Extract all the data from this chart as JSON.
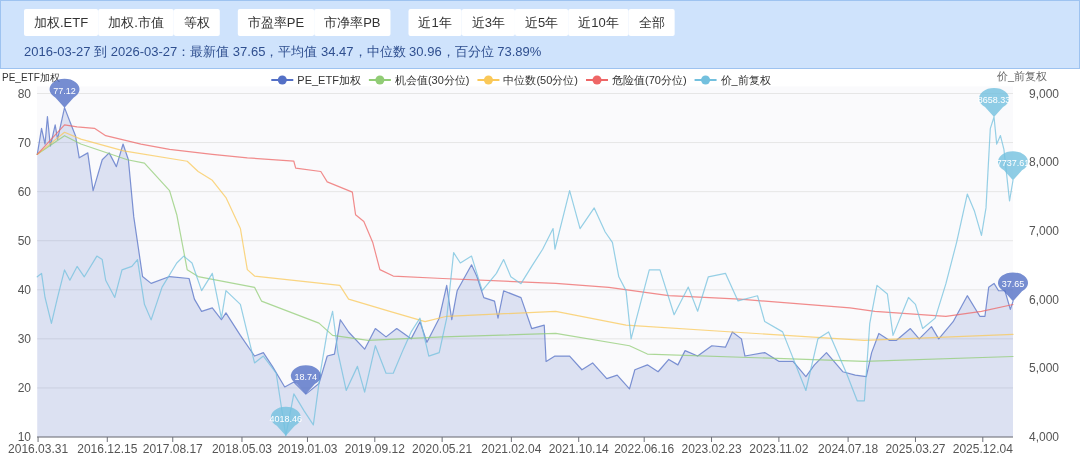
{
  "chart_data": {
    "type": "line",
    "subtitle": "2016-03-27 到 2026-03-27：最新值 37.65，平均值 34.47，中位数 30.96，百分位 73.89%",
    "ylabel": "PE_ETF加权",
    "y2label": "价_前复权",
    "grid": "y",
    "legend": "top",
    "xlim": [
      "2016-03-27",
      "2026-03-27"
    ],
    "xticks": [
      {
        "value": "2016-03-31",
        "label": "2016.03.31"
      },
      {
        "value": "2016-12-15",
        "label": "2016.12.15"
      },
      {
        "value": "2017-08-17",
        "label": "2017.08.17"
      },
      {
        "value": "2018-05-03",
        "label": "2018.05.03"
      },
      {
        "value": "2019-01-03",
        "label": "2019.01.03"
      },
      {
        "value": "2019-09-12",
        "label": "2019.09.12"
      },
      {
        "value": "2020-05-21",
        "label": "2020.05.21"
      },
      {
        "value": "2021-02-04",
        "label": "2021.02.04"
      },
      {
        "value": "2021-10-14",
        "label": "2021.10.14"
      },
      {
        "value": "2022-06-16",
        "label": "2022.06.16"
      },
      {
        "value": "2023-02-23",
        "label": "2023.02.23"
      },
      {
        "value": "2023-11-02",
        "label": "2023.11.02"
      },
      {
        "value": "2024-07-18",
        "label": "2024.07.18"
      },
      {
        "value": "2025-03-27",
        "label": "2025.03.27"
      },
      {
        "value": "2025-12-04",
        "label": "2025.12.04"
      }
    ],
    "ylim": [
      10,
      80
    ],
    "yticks": [
      10,
      20,
      30,
      40,
      50,
      60,
      70,
      80
    ],
    "y2lim": [
      4000,
      9000
    ],
    "y2ticks": [
      {
        "value": 4000,
        "label": "4,000"
      },
      {
        "value": 5000,
        "label": "5,000"
      },
      {
        "value": 6000,
        "label": "6,000"
      },
      {
        "value": 7000,
        "label": "7,000"
      },
      {
        "value": 8000,
        "label": "8,000"
      },
      {
        "value": 9000,
        "label": "9,000"
      }
    ],
    "annotations": [
      "加权.ETF",
      "加权.市值",
      "等权",
      "市盈率PE",
      "市净率PB",
      "近1年",
      "近3年",
      "近5年",
      "近10年",
      "全部"
    ],
    "series": [
      {
        "name": "PE_ETF加权",
        "type": "area",
        "color": "#5470c6",
        "x": [
          "2016-03-28",
          "2016-04-13",
          "2016-04-26",
          "2016-05-05",
          "2016-05-16",
          "2016-06-03",
          "2016-06-12",
          "2016-07-08",
          "2016-07-28",
          "2016-08-18",
          "2016-09-01",
          "2016-10-03",
          "2016-10-23",
          "2016-11-26",
          "2016-12-22",
          "2017-01-18",
          "2017-02-12",
          "2017-03-04",
          "2017-03-24",
          "2017-04-26",
          "2017-05-28",
          "2017-08-05",
          "2017-10-17",
          "2017-11-06",
          "2017-12-03",
          "2018-01-12",
          "2018-02-15",
          "2018-03-04",
          "2018-04-27",
          "2018-06-19",
          "2018-07-22",
          "2018-08-25",
          "2018-10-10",
          "2018-11-13",
          "2018-12-28",
          "2019-02-15",
          "2019-03-18",
          "2019-04-14",
          "2019-05-06",
          "2019-06-06",
          "2019-08-05",
          "2019-09-14",
          "2019-10-24",
          "2019-12-03",
          "2020-01-26",
          "2020-02-28",
          "2020-03-25",
          "2020-05-10",
          "2020-06-07",
          "2020-06-26",
          "2020-07-16",
          "2020-09-08",
          "2020-09-28",
          "2020-10-24",
          "2020-12-03",
          "2020-12-16",
          "2021-01-06",
          "2021-03-12",
          "2021-04-21",
          "2021-06-07",
          "2021-06-14",
          "2021-07-17",
          "2021-09-10",
          "2021-10-26",
          "2021-12-05",
          "2022-01-27",
          "2022-03-07",
          "2022-04-22",
          "2022-05-12",
          "2022-06-28",
          "2022-08-07",
          "2022-09-16",
          "2022-10-20",
          "2022-11-16",
          "2023-01-02",
          "2023-02-24",
          "2023-04-16",
          "2023-05-12",
          "2023-06-15",
          "2023-06-28",
          "2023-09-10",
          "2023-11-03",
          "2023-12-25",
          "2024-02-11",
          "2024-03-14",
          "2024-04-28",
          "2024-06-28",
          "2024-08-14",
          "2024-09-24",
          "2024-10-14",
          "2024-11-10",
          "2024-12-19",
          "2025-01-15",
          "2025-03-08",
          "2025-04-10",
          "2025-05-26",
          "2025-06-22",
          "2025-08-15",
          "2025-10-07",
          "2025-11-23",
          "2025-12-12",
          "2025-12-26",
          "2026-01-15",
          "2026-02-01",
          "2026-02-25",
          "2026-03-17",
          "2026-03-27"
        ],
        "value_labels": [
          null,
          null,
          null,
          null,
          null,
          null,
          null,
          "77.12",
          null,
          null,
          null,
          null,
          null,
          null,
          null,
          null,
          null,
          null,
          null,
          null,
          null,
          null,
          null,
          null,
          null,
          null,
          null,
          null,
          null,
          null,
          null,
          null,
          null,
          null,
          "18.74",
          null,
          null,
          null,
          null,
          null,
          null,
          null,
          null,
          null,
          null,
          null,
          null,
          null,
          null,
          null,
          null,
          null,
          null,
          null,
          null,
          null,
          null,
          null,
          null,
          null,
          null,
          null,
          null,
          null,
          null,
          null,
          null,
          null,
          null,
          null,
          null,
          null,
          null,
          null,
          null,
          null,
          null,
          null,
          null,
          null,
          null,
          null,
          null,
          null,
          null,
          null,
          null,
          null,
          null,
          null,
          null,
          null,
          null,
          null,
          null,
          null,
          null,
          null,
          null,
          null,
          null,
          null,
          null,
          null,
          null,
          null,
          "37.65"
        ],
        "values": [
          67.6,
          72.9,
          69.7,
          75.3,
          69.3,
          73.6,
          70.7,
          77.12,
          74.3,
          71.4,
          66.9,
          67.9,
          60.2,
          66.5,
          67.9,
          65.1,
          69.7,
          66.5,
          54.9,
          42.7,
          41.3,
          42.7,
          42.3,
          38.1,
          35.6,
          36.3,
          33.9,
          35.3,
          30.7,
          26.5,
          27.2,
          24.4,
          20.2,
          21.2,
          18.74,
          20.9,
          26.5,
          26.9,
          33.9,
          31.4,
          27.9,
          32.1,
          30.4,
          32.1,
          30.0,
          33.5,
          29.3,
          34.2,
          40.9,
          33.9,
          39.8,
          45.1,
          42.7,
          38.4,
          37.7,
          34.2,
          39.8,
          38.4,
          32.1,
          32.8,
          25.4,
          26.5,
          26.5,
          23.7,
          25.1,
          21.9,
          22.6,
          19.8,
          23.7,
          24.7,
          23.3,
          25.8,
          24.7,
          27.6,
          26.5,
          28.6,
          28.3,
          31.4,
          30.0,
          26.5,
          27.2,
          25.4,
          25.4,
          22.3,
          24.7,
          27.2,
          23.3,
          22.6,
          22.3,
          27.2,
          31.1,
          29.7,
          29.7,
          32.1,
          30.0,
          32.5,
          30.0,
          33.5,
          38.8,
          34.6,
          34.6,
          40.5,
          41.3,
          39.8,
          39.8,
          36.0,
          37.65
        ]
      },
      {
        "name": "机会值(30分位)",
        "color": "#91cc75",
        "x": [
          "2016-03-28",
          "2016-07-08",
          "2016-09-07",
          "2017-02-28",
          "2017-05-03",
          "2017-08-05",
          "2017-09-01",
          "2017-10-10",
          "2017-11-20",
          "2018-06-19",
          "2018-07-15",
          "2019-02-15",
          "2019-04-07",
          "2019-08-18",
          "2020-05-23",
          "2021-07-20",
          "2022-04-22",
          "2022-06-28",
          "2024-09-17",
          "2026-03-27"
        ],
        "values": [
          67.6,
          71.4,
          69.7,
          66.5,
          65.8,
          60.2,
          55.3,
          44.1,
          42.7,
          40.5,
          37.7,
          33.2,
          30.7,
          29.7,
          30.4,
          31.1,
          28.6,
          26.9,
          25.4,
          26.4
        ]
      },
      {
        "name": "中位数(50分位)",
        "color": "#fac858",
        "x": [
          "2016-03-28",
          "2016-07-08",
          "2016-09-07",
          "2017-02-14",
          "2017-10-10",
          "2017-11-20",
          "2018-01-12",
          "2018-03-04",
          "2018-04-27",
          "2018-05-23",
          "2018-06-19",
          "2019-05-04",
          "2019-06-06",
          "2019-11-07",
          "2020-03-18",
          "2020-06-07",
          "2021-07-20",
          "2022-04-09",
          "2023-05-12",
          "2024-09-17",
          "2026-03-27"
        ],
        "values": [
          67.6,
          72.1,
          70.7,
          68.3,
          66.2,
          64.1,
          62.3,
          58.8,
          52.5,
          44.1,
          42.8,
          40.9,
          38.1,
          35.6,
          33.5,
          34.6,
          35.6,
          32.8,
          31.4,
          29.7,
          30.9
        ]
      },
      {
        "name": "危险值(70分位)",
        "color": "#ee6666",
        "x": [
          "2016-03-28",
          "2016-07-08",
          "2016-08-24",
          "2016-10-28",
          "2016-12-09",
          "2017-04-20",
          "2017-08-05",
          "2018-01-12",
          "2018-05-23",
          "2018-11-13",
          "2018-11-20",
          "2019-02-22",
          "2019-03-18",
          "2019-06-20",
          "2019-07-02",
          "2019-08-02",
          "2019-09-04",
          "2019-10-01",
          "2019-11-20",
          "2020-05-23",
          "2021-07-20",
          "2022-02-04",
          "2022-09-16",
          "2023-06-09",
          "2024-07-25",
          "2024-10-26",
          "2025-07-19",
          "2025-11-29",
          "2026-03-27"
        ],
        "values": [
          67.6,
          73.6,
          73.2,
          72.9,
          71.4,
          69.7,
          68.6,
          67.6,
          66.9,
          66.2,
          64.8,
          64.1,
          62.0,
          59.9,
          55.3,
          53.9,
          49.7,
          44.1,
          42.8,
          42.3,
          41.3,
          40.5,
          38.8,
          38.1,
          36.3,
          35.6,
          34.6,
          35.6,
          37.0
        ]
      },
      {
        "name": "价_前复权",
        "axis": "y2",
        "color": "#73c0de",
        "x": [
          "2016-03-28",
          "2016-04-13",
          "2016-04-26",
          "2016-05-20",
          "2016-06-12",
          "2016-07-08",
          "2016-07-28",
          "2016-08-24",
          "2016-09-20",
          "2016-11-06",
          "2016-11-26",
          "2016-12-09",
          "2017-01-12",
          "2017-02-08",
          "2017-03-17",
          "2017-04-07",
          "2017-05-03",
          "2017-05-28",
          "2017-07-08",
          "2017-09-01",
          "2017-09-27",
          "2017-10-28",
          "2017-12-03",
          "2018-01-12",
          "2018-02-15",
          "2018-03-04",
          "2018-04-27",
          "2018-06-19",
          "2018-07-22",
          "2018-09-08",
          "2018-10-14",
          "2018-11-13",
          "2018-12-22",
          "2019-01-25",
          "2019-02-22",
          "2019-03-18",
          "2019-04-07",
          "2019-04-27",
          "2019-05-28",
          "2019-07-09",
          "2019-08-05",
          "2019-09-14",
          "2019-10-24",
          "2019-11-20",
          "2019-12-28",
          "2020-01-26",
          "2020-02-28",
          "2020-04-01",
          "2020-05-10",
          "2020-06-07",
          "2020-07-03",
          "2020-07-28",
          "2020-09-08",
          "2020-10-18",
          "2020-12-10",
          "2021-01-06",
          "2021-02-02",
          "2021-03-12",
          "2021-04-21",
          "2021-06-01",
          "2021-07-10",
          "2021-07-17",
          "2021-09-10",
          "2021-10-19",
          "2021-12-11",
          "2022-01-21",
          "2022-02-17",
          "2022-03-13",
          "2022-04-09",
          "2022-04-28",
          "2022-07-05",
          "2022-08-14",
          "2022-10-06",
          "2022-11-28",
          "2023-01-02",
          "2023-02-11",
          "2023-04-16",
          "2023-06-02",
          "2023-08-14",
          "2023-09-10",
          "2023-11-16",
          "2024-02-11",
          "2024-03-27",
          "2024-05-06",
          "2024-07-12",
          "2024-08-21",
          "2024-09-17",
          "2024-10-07",
          "2024-11-03",
          "2024-12-12",
          "2025-01-02",
          "2025-03-01",
          "2025-03-27",
          "2025-04-23",
          "2025-06-09",
          "2025-07-19",
          "2025-08-28",
          "2025-10-07",
          "2025-11-03",
          "2025-11-29",
          "2025-12-16",
          "2026-01-01",
          "2026-01-15",
          "2026-01-25",
          "2026-02-08",
          "2026-02-21",
          "2026-03-14",
          "2026-03-27"
        ],
        "value_labels": [
          null,
          null,
          null,
          null,
          null,
          null,
          null,
          null,
          null,
          null,
          null,
          null,
          null,
          null,
          null,
          null,
          null,
          null,
          null,
          null,
          null,
          null,
          null,
          null,
          null,
          null,
          null,
          null,
          null,
          null,
          "4018.46",
          null,
          null,
          null,
          null,
          null,
          null,
          null,
          null,
          null,
          null,
          null,
          null,
          null,
          null,
          null,
          null,
          null,
          null,
          null,
          null,
          null,
          null,
          null,
          null,
          null,
          null,
          null,
          null,
          null,
          null,
          null,
          null,
          null,
          null,
          null,
          null,
          null,
          null,
          null,
          null,
          null,
          null,
          null,
          null,
          null,
          null,
          null,
          null,
          null,
          null,
          null,
          null,
          null,
          null,
          null,
          null,
          null,
          null,
          null,
          null,
          null,
          null,
          null,
          null,
          null,
          null,
          null,
          null,
          null,
          null,
          null,
          "8658.33",
          null,
          null,
          null,
          null,
          "7737.61"
        ],
        "values": [
          6332,
          6382,
          6031,
          5655,
          6031,
          6432,
          6282,
          6483,
          6332,
          6633,
          6583,
          6282,
          6031,
          6432,
          6483,
          6583,
          5931,
          5705,
          6182,
          6533,
          6633,
          6533,
          6131,
          6382,
          5730,
          6131,
          5931,
          5078,
          5178,
          4928,
          4018.46,
          4627,
          4376,
          4176,
          4978,
          5530,
          5830,
          5229,
          4677,
          5028,
          4652,
          5329,
          4928,
          4928,
          5279,
          5530,
          5730,
          5178,
          5229,
          5730,
          6683,
          6533,
          6633,
          6131,
          6382,
          6583,
          6332,
          6232,
          6483,
          6733,
          7034,
          6733,
          7586,
          7034,
          7335,
          6984,
          6834,
          6332,
          6131,
          5429,
          6432,
          6432,
          5780,
          6182,
          5831,
          6332,
          6382,
          5981,
          6056,
          5680,
          5530,
          4677,
          5429,
          5530,
          4928,
          4527,
          4527,
          5655,
          6207,
          6081,
          5479,
          6031,
          5931,
          5580,
          5730,
          6232,
          6834,
          7536,
          7285,
          6934,
          7335,
          8488,
          8658.33,
          8263,
          8388,
          8187,
          7435,
          7737.61
        ]
      }
    ]
  }
}
